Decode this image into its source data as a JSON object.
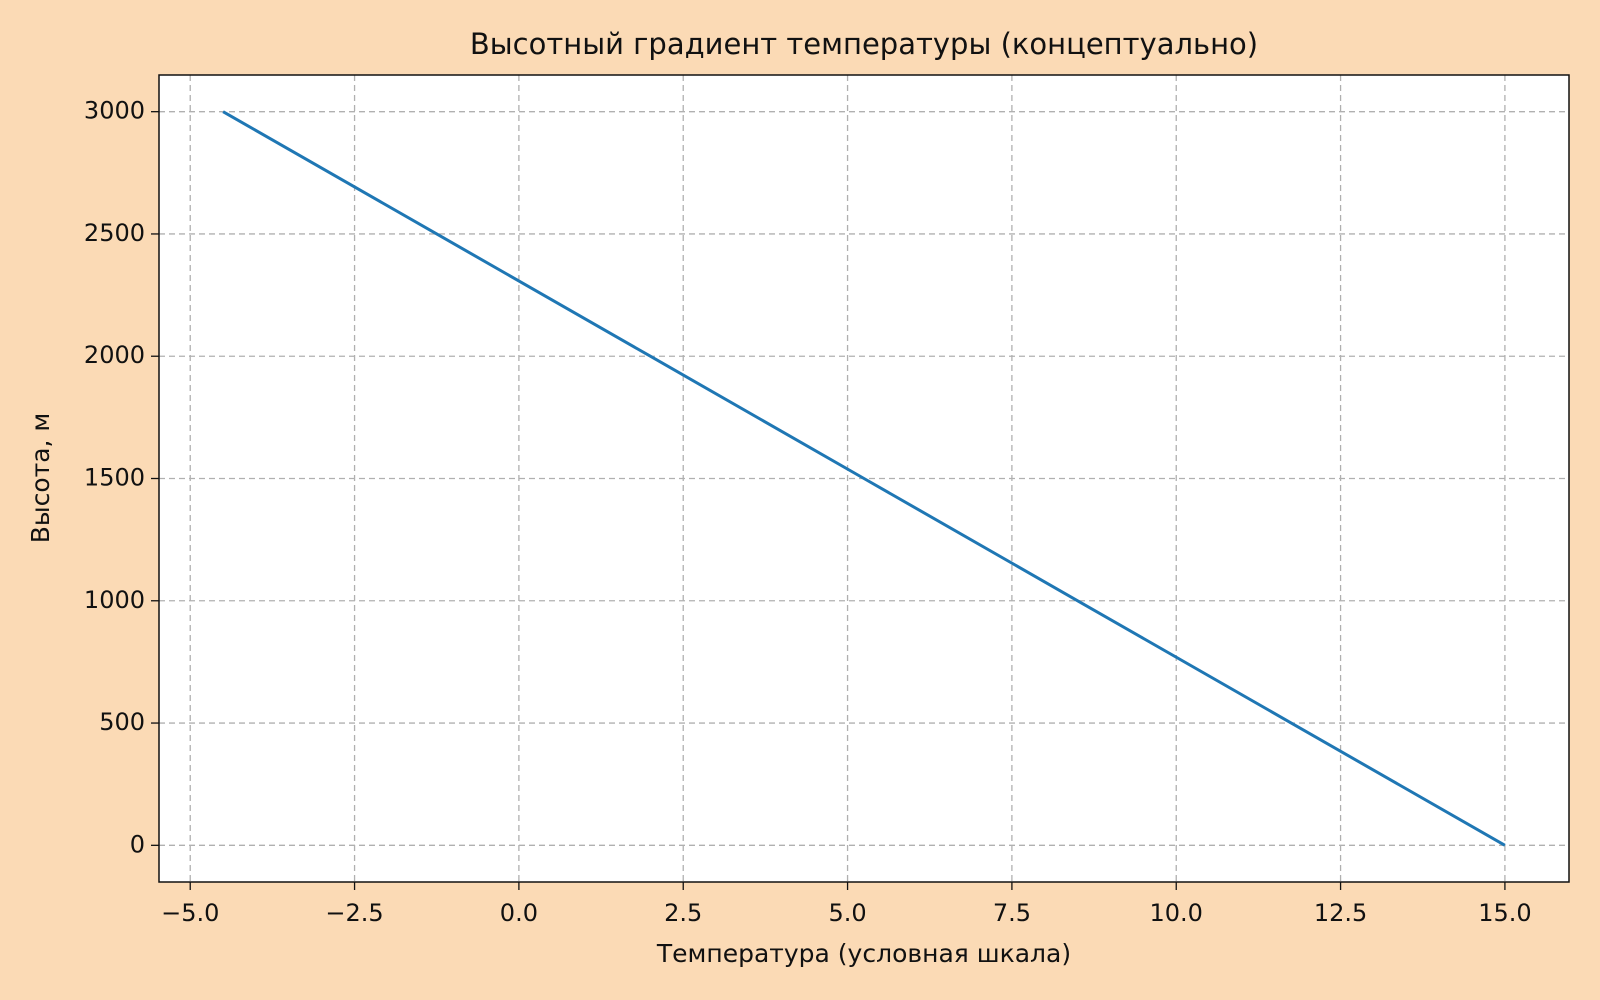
{
  "chart_data": {
    "type": "line",
    "title": "Высотный градиент температуры (концептуально)",
    "x_label": "Температура (условная шкала)",
    "y_label": "Высота, м",
    "x": [
      15,
      11.75,
      8.5,
      5.25,
      2,
      -1.25,
      -4.5
    ],
    "series": [
      {
        "color": "#1f77b4",
        "values": [
          0,
          500,
          1000,
          1500,
          2000,
          2500,
          3000
        ]
      }
    ],
    "xlim": [
      -5.475,
      15.975
    ],
    "ylim": [
      -150,
      3150
    ],
    "xticks": [
      {
        "value": -5,
        "label": "−5.0"
      },
      {
        "value": -2.5,
        "label": "−2.5"
      },
      {
        "value": 0,
        "label": "0.0"
      },
      {
        "value": 2.5,
        "label": "2.5"
      },
      {
        "value": 5,
        "label": "5.0"
      },
      {
        "value": 7.5,
        "label": "7.5"
      },
      {
        "value": 10,
        "label": "10.0"
      },
      {
        "value": 12.5,
        "label": "12.5"
      },
      {
        "value": 15,
        "label": "15.0"
      }
    ],
    "yticks": [
      0,
      500,
      1000,
      1500,
      2000,
      2500,
      3000
    ],
    "grid": true
  }
}
